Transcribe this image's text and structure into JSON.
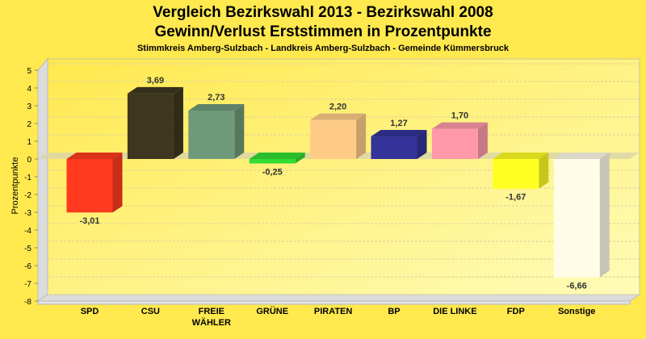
{
  "chart_data": {
    "type": "bar",
    "title_line1": "Vergleich Bezirkswahl 2013 - Bezirkswahl 2008",
    "title_line2": "Gewinn/Verlust Erststimmen in Prozentpunkte",
    "subtitle": "Stimmkreis Amberg-Sulzbach - Landkreis Amberg-Sulzbach - Gemeinde Kümmersbruck",
    "xlabel": "",
    "ylabel": "Prozentpunkte",
    "ylim": [
      -8,
      5
    ],
    "yticks": [
      5,
      4,
      3,
      2,
      1,
      0,
      -1,
      -2,
      -3,
      -4,
      -5,
      -6,
      -7,
      -8
    ],
    "grid": true,
    "categories": [
      "SPD",
      "CSU",
      "FREIE WÄHLER",
      "GRÜNE",
      "PIRATEN",
      "BP",
      "DIE LINKE",
      "FDP",
      "Sonstige"
    ],
    "category_lines": [
      [
        "SPD"
      ],
      [
        "CSU"
      ],
      [
        "FREIE",
        "WÄHLER"
      ],
      [
        "GRÜNE"
      ],
      [
        "PIRATEN"
      ],
      [
        "BP"
      ],
      [
        "DIE LINKE"
      ],
      [
        "FDP"
      ],
      [
        "Sonstige"
      ]
    ],
    "values": [
      -3.01,
      3.69,
      2.73,
      -0.25,
      2.2,
      1.27,
      1.7,
      -1.67,
      -6.66
    ],
    "value_labels": [
      "-3,01",
      "3,69",
      "2,73",
      "-0,25",
      "2,20",
      "1,27",
      "1,70",
      "-1,67",
      "-6,66"
    ],
    "colors": [
      "#ff3a1e",
      "#3d3720",
      "#6f9a7a",
      "#33dd33",
      "#ffcc88",
      "#333399",
      "#ff99aa",
      "#ffff22",
      "#fffde8"
    ]
  }
}
